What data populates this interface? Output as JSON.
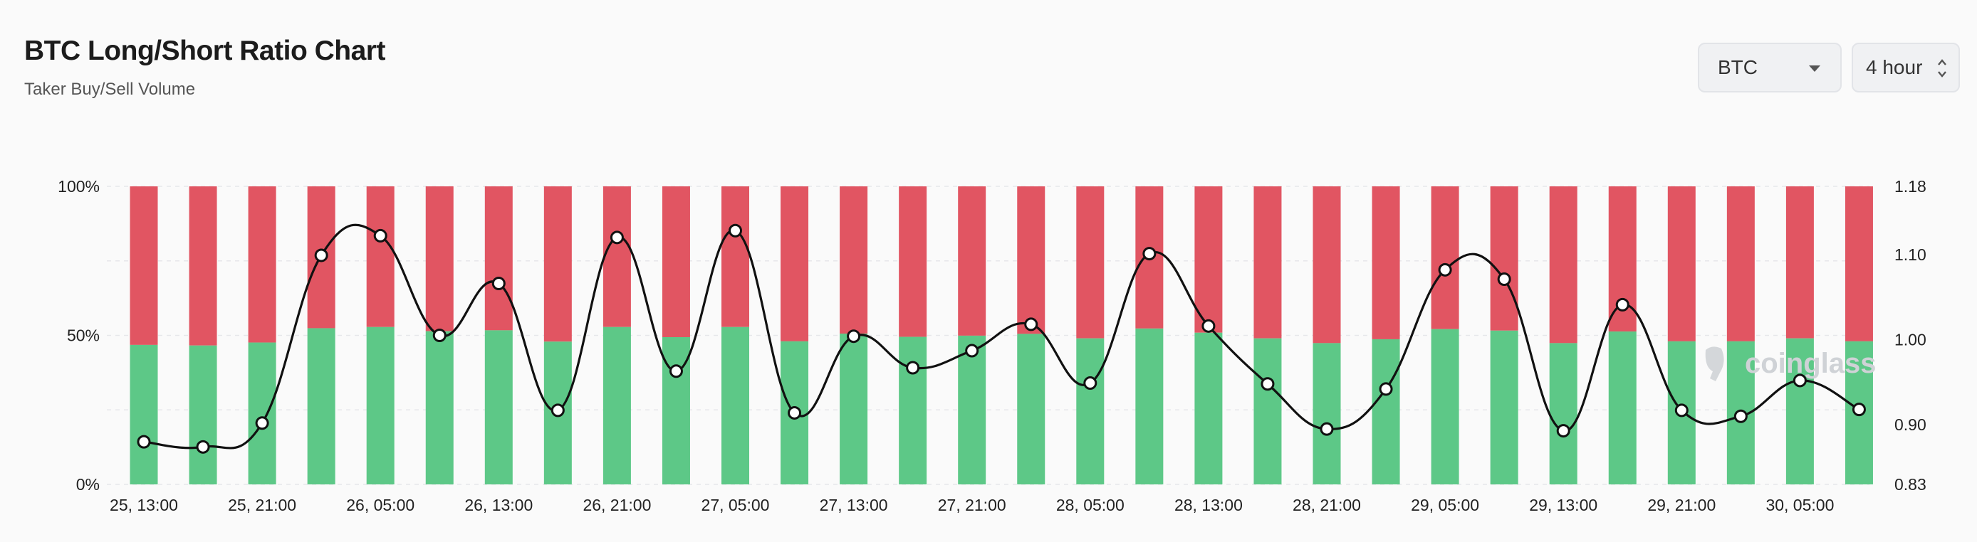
{
  "header": {
    "title": "BTC Long/Short Ratio Chart",
    "subtitle": "Taker Buy/Sell Volume"
  },
  "controls": {
    "asset_value": "BTC",
    "interval_value": "4 hour"
  },
  "watermark": "coinglass",
  "chart_data": {
    "type": "bar",
    "stacked_percent": true,
    "categories": [
      "25, 13:00",
      "25, 17:00",
      "25, 21:00",
      "26, 01:00",
      "26, 05:00",
      "26, 09:00",
      "26, 13:00",
      "26, 17:00",
      "26, 21:00",
      "27, 01:00",
      "27, 05:00",
      "27, 09:00",
      "27, 13:00",
      "27, 17:00",
      "27, 21:00",
      "28, 01:00",
      "28, 05:00",
      "28, 09:00",
      "28, 13:00",
      "28, 17:00",
      "28, 21:00",
      "29, 01:00",
      "29, 05:00",
      "29, 09:00",
      "29, 13:00",
      "29, 17:00",
      "29, 21:00",
      "30, 01:00",
      "30, 05:00",
      "30, 09:00"
    ],
    "x_tick_labels": [
      "25, 13:00",
      "25, 21:00",
      "26, 05:00",
      "26, 13:00",
      "26, 21:00",
      "27, 05:00",
      "27, 13:00",
      "27, 21:00",
      "28, 05:00",
      "28, 13:00",
      "28, 21:00",
      "29, 05:00",
      "29, 13:00",
      "29, 21:00",
      "30, 05:00"
    ],
    "series": [
      {
        "name": "Buy",
        "color": "#5dc887",
        "values": [
          46.8,
          46.6,
          47.6,
          52.4,
          52.8,
          51.4,
          51.7,
          47.9,
          52.8,
          49.4,
          52.8,
          48.0,
          50.6,
          49.5,
          49.9,
          50.5,
          49.0,
          52.3,
          50.9,
          49.0,
          47.4,
          48.7,
          52.1,
          51.6,
          47.4,
          51.3,
          48.0,
          48.0,
          49.0,
          48.0
        ]
      },
      {
        "name": "Sell",
        "color": "#e15562",
        "values": [
          53.2,
          53.4,
          52.4,
          47.6,
          47.2,
          48.6,
          48.3,
          52.1,
          47.2,
          50.6,
          47.2,
          52.0,
          49.4,
          50.5,
          50.1,
          49.5,
          51.0,
          47.7,
          49.1,
          51.0,
          52.6,
          51.3,
          47.9,
          48.4,
          52.6,
          48.7,
          52.0,
          52.0,
          51.0,
          52.0
        ]
      }
    ],
    "ratio": {
      "color": "#111111",
      "values": [
        0.88,
        0.874,
        0.902,
        1.099,
        1.122,
        1.005,
        1.066,
        0.917,
        1.12,
        0.963,
        1.128,
        0.914,
        1.004,
        0.967,
        0.987,
        1.018,
        0.949,
        1.101,
        1.016,
        0.948,
        0.895,
        0.942,
        1.082,
        1.071,
        0.893,
        1.041,
        0.917,
        0.91,
        0.952,
        0.918
      ]
    },
    "y_left": {
      "ticks": [
        "0%",
        "50%",
        "100%"
      ],
      "ylim": [
        0,
        100
      ]
    },
    "y_right": {
      "ticks": [
        "0.83",
        "0.90",
        "1.00",
        "1.10",
        "1.18"
      ],
      "ylim": [
        0.83,
        1.18
      ]
    },
    "grid": "horizontal dashed"
  }
}
